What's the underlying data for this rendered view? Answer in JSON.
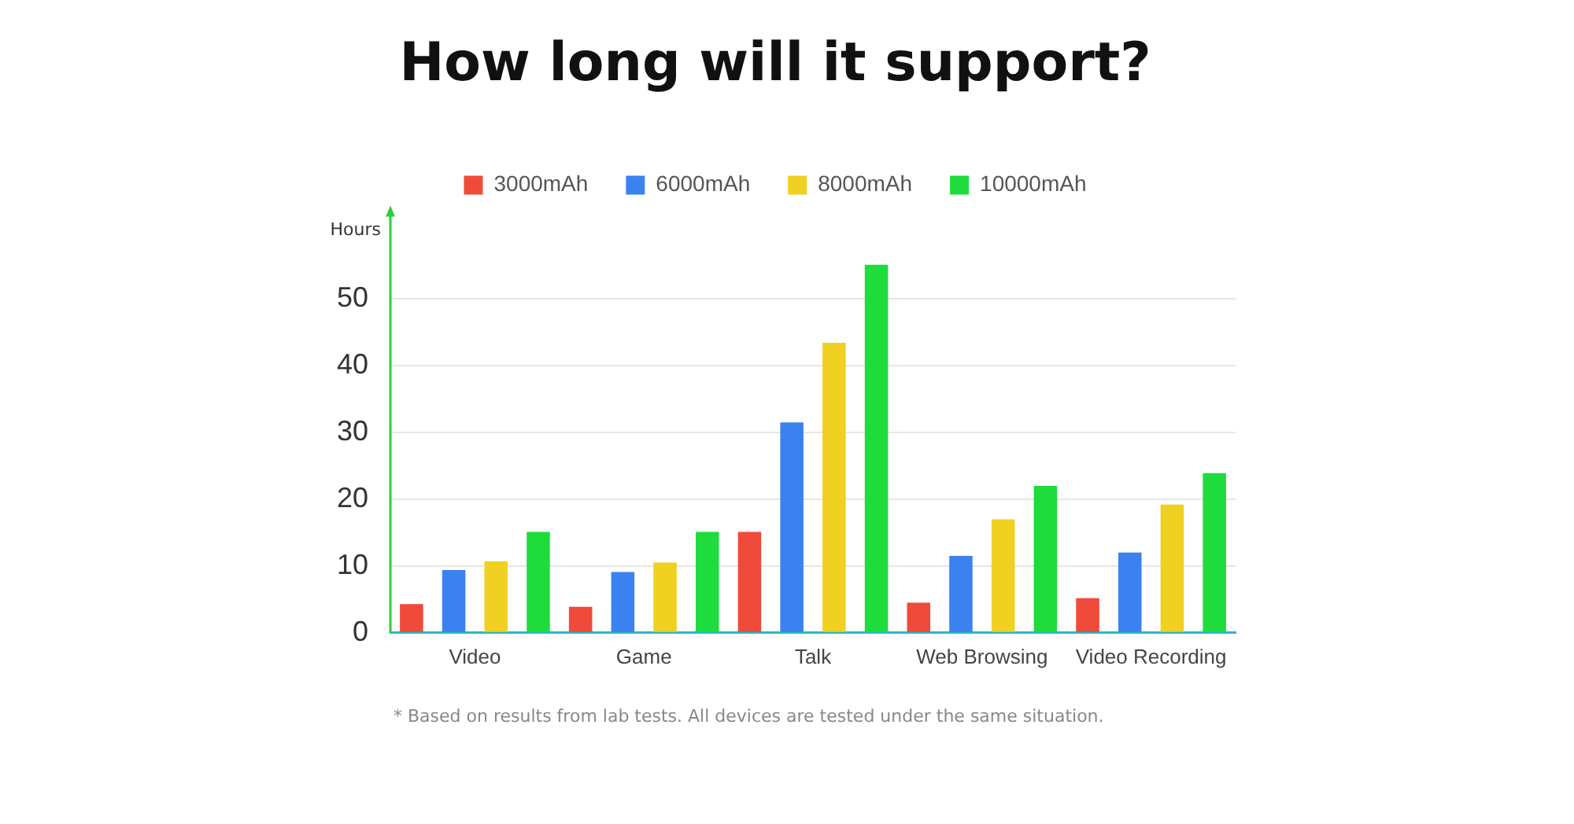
{
  "chart_data": {
    "type": "bar",
    "title": "How long will it support?",
    "ylabel": "Hours",
    "categories": [
      "Video",
      "Game",
      "Talk",
      "Web Browsing",
      "Video Recording"
    ],
    "series": [
      {
        "name": "3000mAh",
        "color": "#f04a3a",
        "values": [
          4.3,
          3.9,
          15.1,
          4.5,
          5.2
        ]
      },
      {
        "name": "6000mAh",
        "color": "#3b82f0",
        "values": [
          9.4,
          9.1,
          31.5,
          11.5,
          12
        ]
      },
      {
        "name": "8000mAh",
        "color": "#f0d020",
        "values": [
          10.7,
          10.5,
          43.4,
          17,
          19.2
        ]
      },
      {
        "name": "10000mAh",
        "color": "#1edc3c",
        "values": [
          15.1,
          15.1,
          55.1,
          22,
          23.9
        ]
      }
    ],
    "ylim": [
      0,
      63
    ],
    "yticks": [
      0,
      10,
      20,
      30,
      40,
      50
    ],
    "grid": "y",
    "legend": "top",
    "annotations": [
      "* Based on results from lab tests. All devices are tested under the same situation."
    ]
  }
}
